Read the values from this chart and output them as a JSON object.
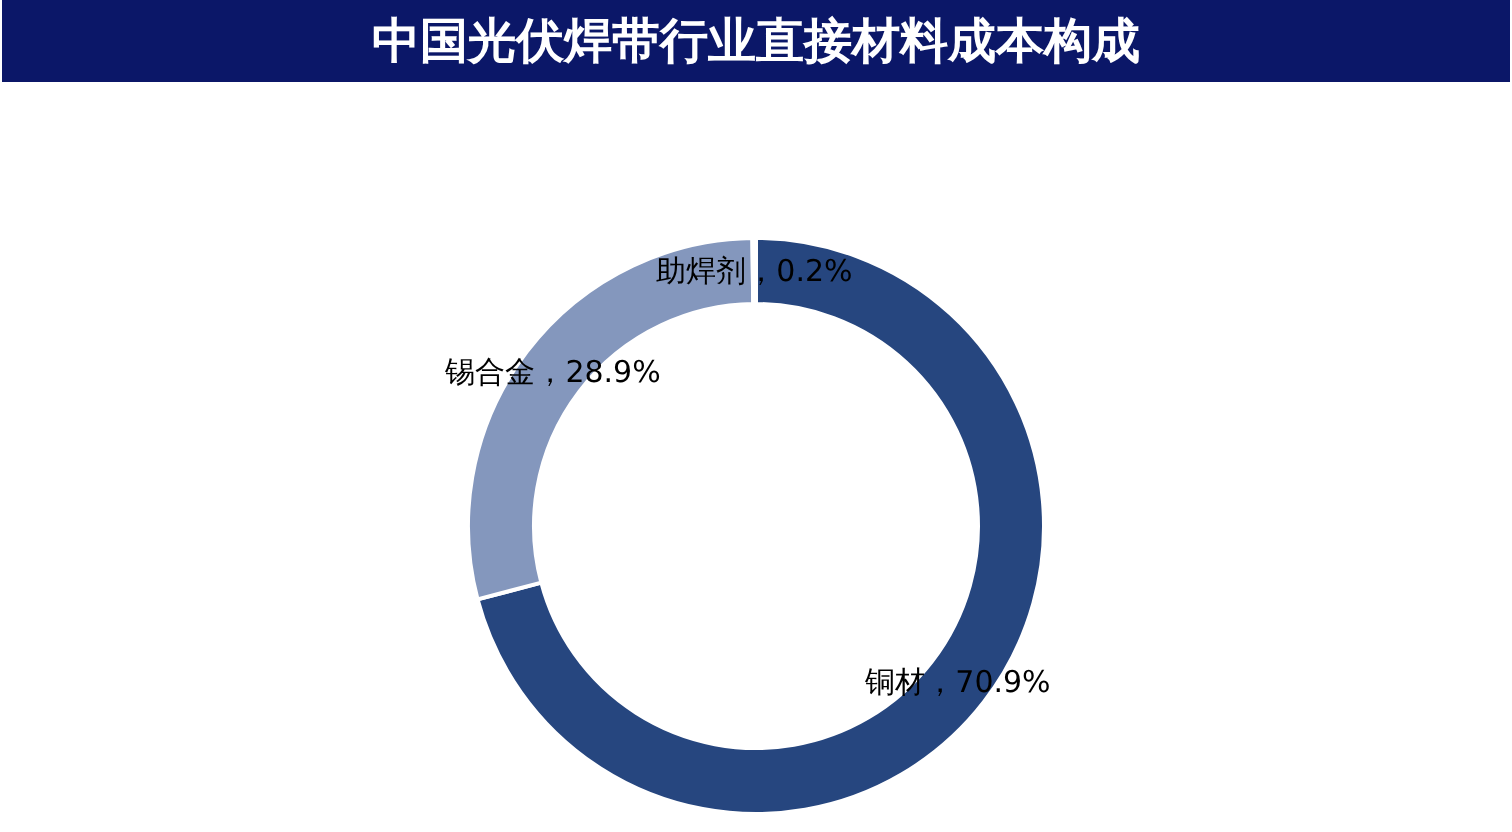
{
  "chart_data": {
    "type": "donut",
    "title": "中国光伏焊带行业直接材料成本构成",
    "categories": [
      "铜材",
      "锡合金",
      "助焊剂"
    ],
    "values": [
      70.9,
      28.9,
      0.2
    ],
    "colors": [
      "#26467f",
      "#8497bd",
      "#dfe5f0"
    ],
    "value_labels": [
      "70.9%",
      "28.9%",
      "0.2%"
    ]
  }
}
